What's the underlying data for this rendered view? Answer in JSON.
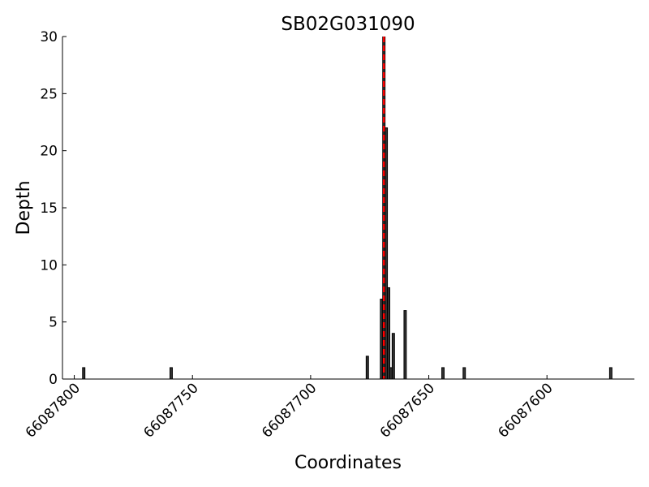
{
  "chart_data": {
    "type": "bar",
    "title": "SB02G031090",
    "x_label": "Coordinates",
    "y_label": "Depth",
    "x": [
      66087796,
      66087759,
      66087676,
      66087670,
      66087669,
      66087668,
      66087667,
      66087666,
      66087665,
      66087660,
      66087644,
      66087635,
      66087573
    ],
    "values": [
      1,
      1,
      2,
      7,
      30,
      22,
      8,
      1,
      4,
      6,
      1,
      1,
      1
    ],
    "color": "#333333",
    "xlim": [
      66087805,
      66087563
    ],
    "xticks": [
      66087800,
      66087750,
      66087700,
      66087650,
      66087600
    ],
    "ylim": [
      0,
      30
    ],
    "yticks": [
      0,
      5,
      10,
      15,
      20,
      25,
      30
    ],
    "marker_line": {
      "x": 66087669,
      "color": "#ff0000",
      "style": "dashed"
    }
  }
}
